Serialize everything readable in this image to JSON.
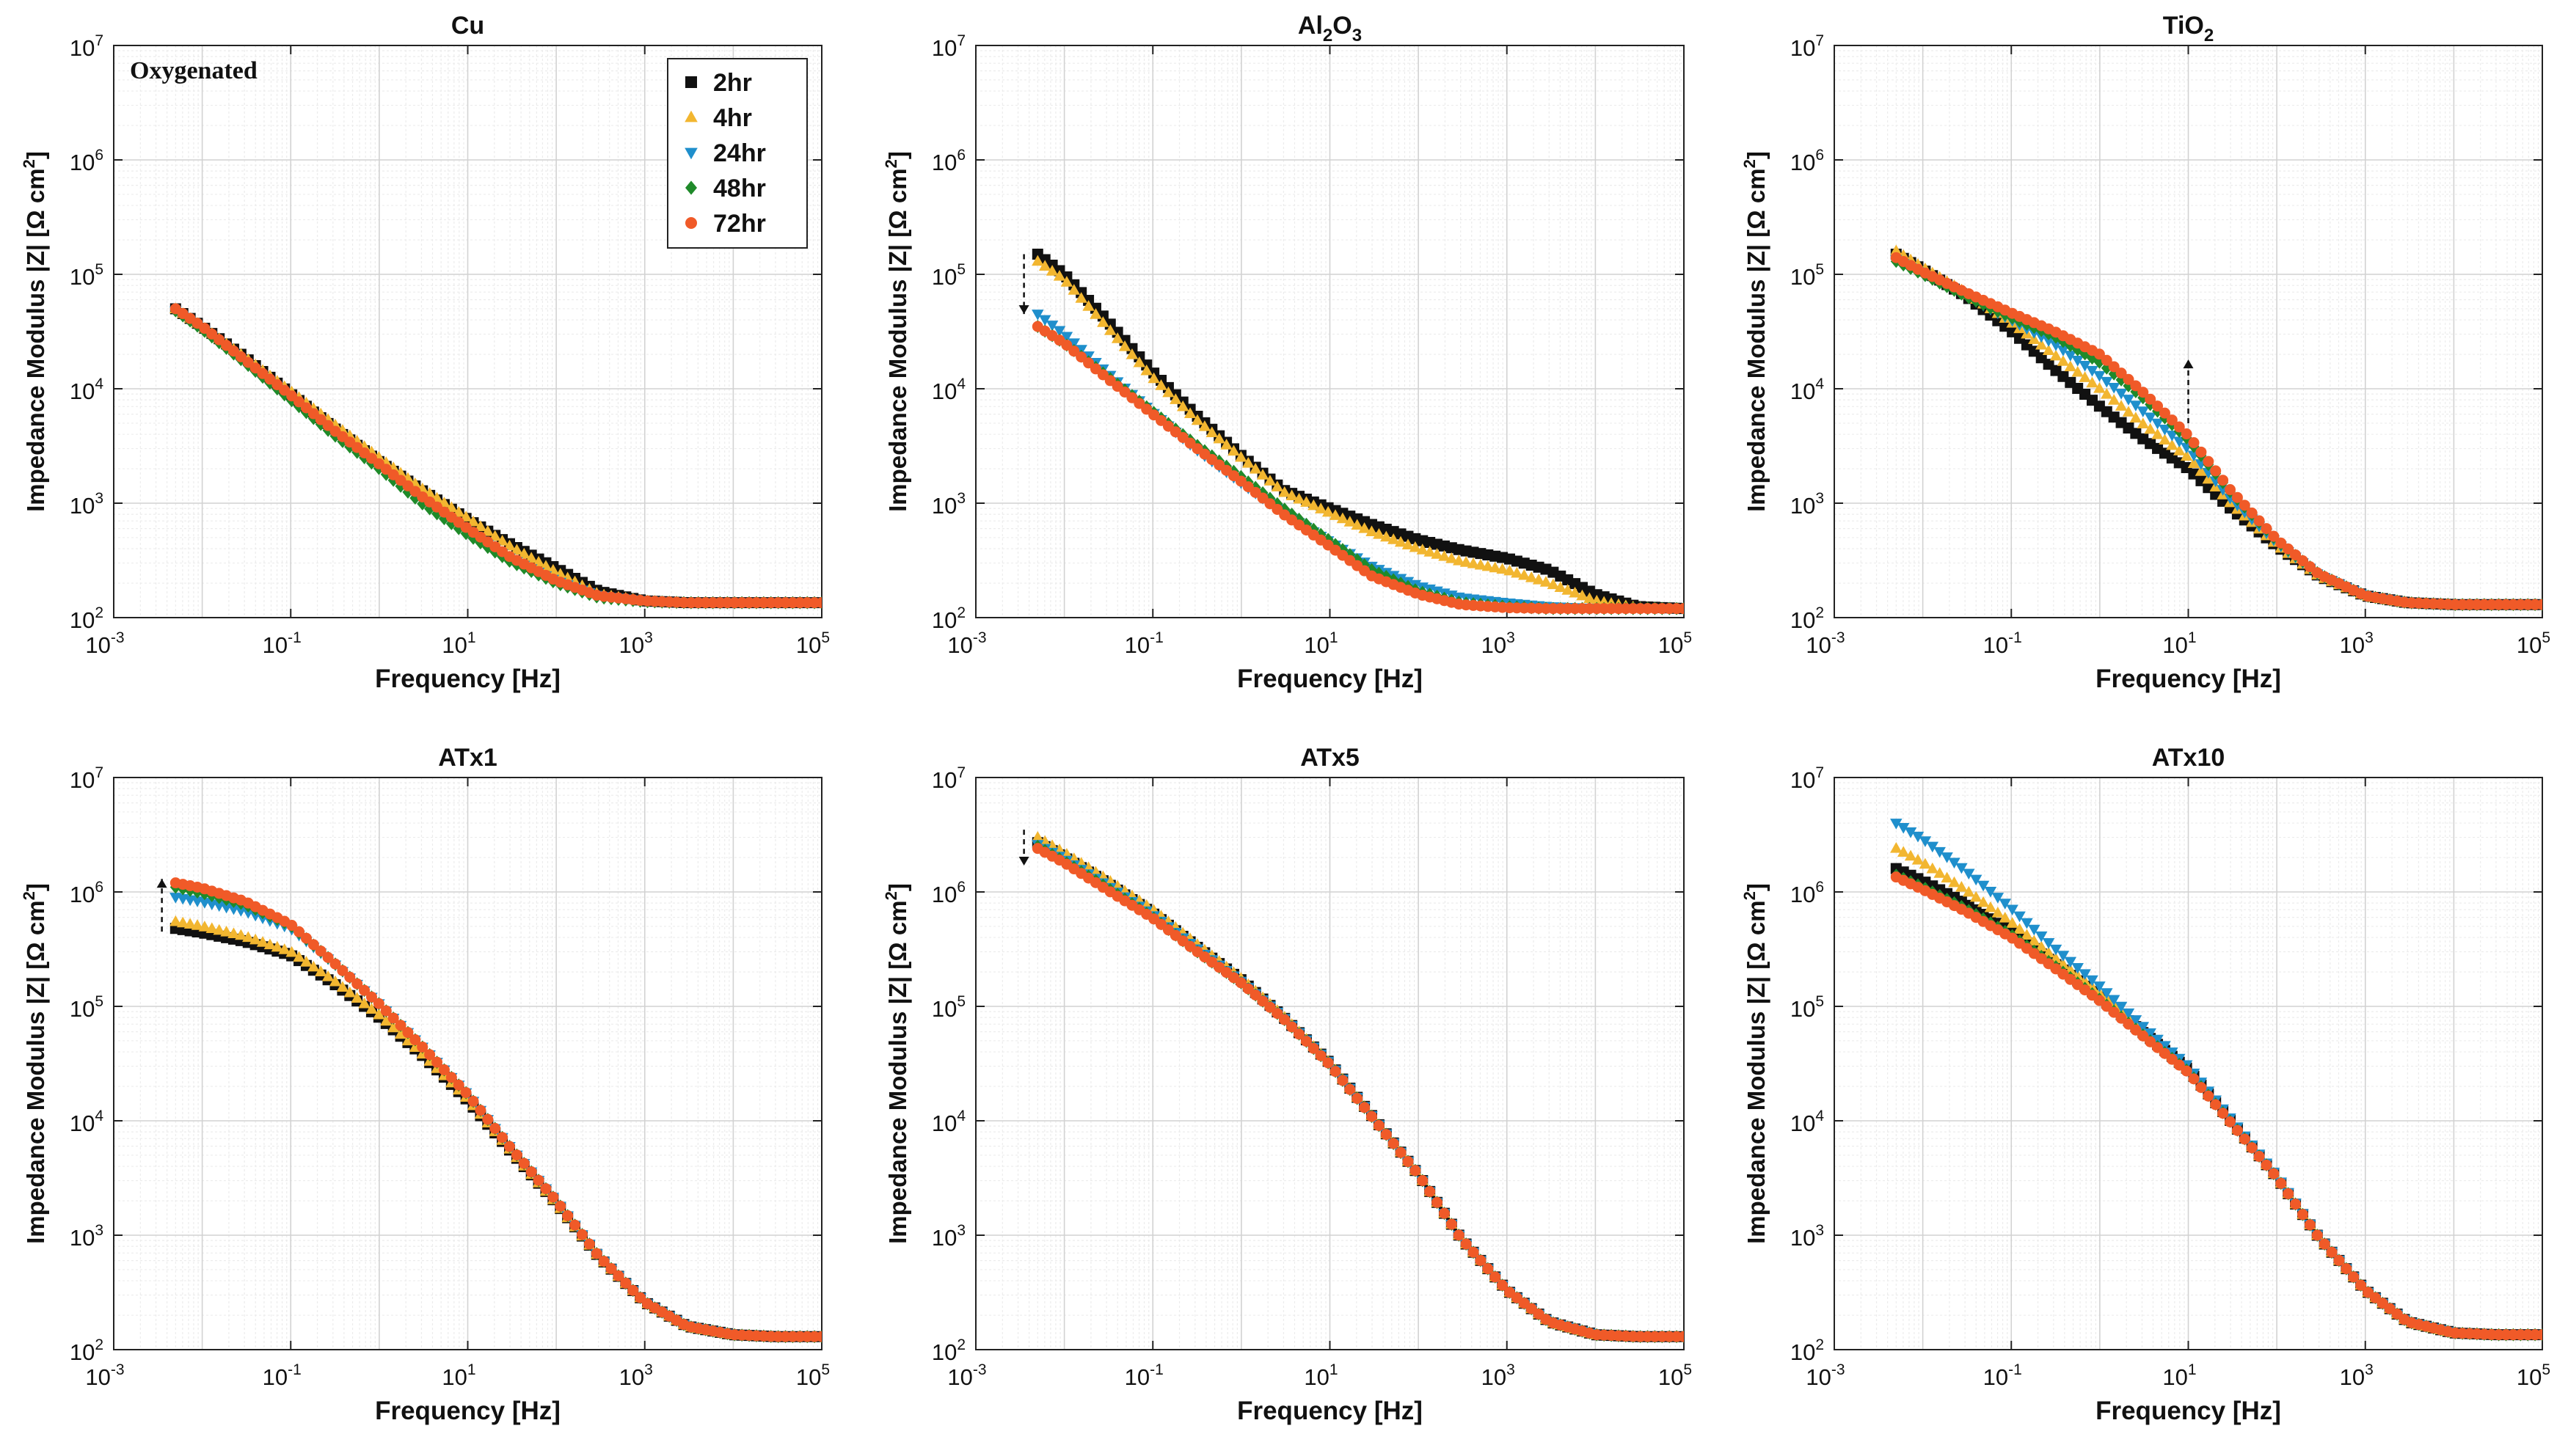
{
  "figure": {
    "x_axis_label": "Frequency [Hz]",
    "y_axis_label_prefix": "Impedance Modulus |Z| [Ω cm",
    "y_axis_label_sup": "2",
    "y_axis_label_suffix": "]",
    "condition_label": "Oxygenated"
  },
  "chart_data": {
    "type": "scatter",
    "x_scale": "log",
    "y_scale": "log",
    "xlim": [
      0.001,
      100000
    ],
    "ylim": [
      100,
      10000000
    ],
    "x_ticks": [
      {
        "base": "10",
        "exp": "-3",
        "value": 0.001
      },
      {
        "base": "10",
        "exp": "-1",
        "value": 0.1
      },
      {
        "base": "10",
        "exp": "1",
        "value": 10
      },
      {
        "base": "10",
        "exp": "3",
        "value": 1000
      },
      {
        "base": "10",
        "exp": "5",
        "value": 100000
      }
    ],
    "y_ticks": [
      {
        "base": "10",
        "exp": "2",
        "value": 100
      },
      {
        "base": "10",
        "exp": "3",
        "value": 1000
      },
      {
        "base": "10",
        "exp": "4",
        "value": 10000
      },
      {
        "base": "10",
        "exp": "5",
        "value": 100000
      },
      {
        "base": "10",
        "exp": "6",
        "value": 1000000
      },
      {
        "base": "10",
        "exp": "7",
        "value": 10000000
      }
    ],
    "legend": [
      {
        "label": "2hr",
        "color": "#111111",
        "marker": "square"
      },
      {
        "label": "4hr",
        "color": "#f2b630",
        "marker": "triangle-up"
      },
      {
        "label": "24hr",
        "color": "#1f8fcc",
        "marker": "triangle-down"
      },
      {
        "label": "48hr",
        "color": "#1f8a2a",
        "marker": "diamond"
      },
      {
        "label": "72hr",
        "color": "#f05a28",
        "marker": "circle"
      }
    ],
    "frequency_hz": [
      0.005,
      0.01,
      0.03,
      0.1,
      0.3,
      1,
      3,
      10,
      30,
      100,
      300,
      1000,
      3000,
      10000,
      30000,
      100000
    ],
    "panels": [
      {
        "title": "Cu",
        "title_sub": "",
        "title_suffix": "",
        "series": [
          {
            "name": "2hr",
            "z": [
              50000,
              35000,
              19000,
              9000,
              4600,
              2300,
              1300,
              720,
              440,
              270,
              170,
              140,
              135,
              135,
              135,
              135
            ]
          },
          {
            "name": "4hr",
            "z": [
              50000,
              35000,
              19000,
              9500,
              5000,
              2500,
              1350,
              740,
              420,
              250,
              160,
              140,
              135,
              135,
              135,
              135
            ]
          },
          {
            "name": "24hr",
            "z": [
              48000,
              33000,
              17000,
              8000,
              4000,
              2000,
              1050,
              560,
              330,
              210,
              155,
              140,
              135,
              135,
              135,
              135
            ]
          },
          {
            "name": "48hr",
            "z": [
              48000,
              33000,
              17000,
              8000,
              4000,
              2000,
              1000,
              530,
              310,
              200,
              150,
              138,
              135,
              135,
              135,
              135
            ]
          },
          {
            "name": "72hr",
            "z": [
              50000,
              35000,
              18000,
              8800,
              4400,
              2200,
              1150,
              600,
              340,
              210,
              155,
              140,
              135,
              135,
              135,
              135
            ]
          }
        ]
      },
      {
        "title": "Al",
        "title_sub": "2",
        "title_suffix": "O",
        "title_sub2": "3",
        "series": [
          {
            "name": "2hr",
            "z": [
              150000,
              100000,
              40000,
              14000,
              6000,
              2600,
              1300,
              900,
              650,
              480,
              390,
              330,
              260,
              160,
              125,
              120
            ]
          },
          {
            "name": "4hr",
            "z": [
              130000,
              90000,
              35000,
              12500,
              5500,
              2500,
              1250,
              820,
              560,
              400,
              310,
              260,
              200,
              140,
              122,
              120
            ]
          },
          {
            "name": "24hr",
            "z": [
              45000,
              30000,
              14000,
              6200,
              3000,
              1500,
              820,
              460,
              280,
              190,
              150,
              135,
              125,
              120,
              120,
              120
            ]
          },
          {
            "name": "48hr",
            "z": [
              35000,
              25000,
              13000,
              6300,
              3300,
              1700,
              900,
              470,
              260,
              170,
              135,
              125,
              120,
              120,
              120,
              120
            ]
          },
          {
            "name": "72hr",
            "z": [
              35000,
              25000,
              12500,
              6000,
              3100,
              1550,
              800,
              420,
              230,
              160,
              130,
              122,
              120,
              120,
              120,
              120
            ]
          }
        ]
      },
      {
        "title": "TiO",
        "title_sub": "2",
        "title_suffix": "",
        "series": [
          {
            "name": "2hr",
            "z": [
              150000,
              110000,
              65000,
              32000,
              15000,
              7000,
              3700,
              2000,
              900,
              420,
              230,
              155,
              135,
              130,
              130,
              130
            ]
          },
          {
            "name": "4hr",
            "z": [
              160000,
              115000,
              70000,
              38000,
              20000,
              10000,
              5000,
              2500,
              1000,
              430,
              230,
              155,
              135,
              130,
              130,
              130
            ]
          },
          {
            "name": "24hr",
            "z": [
              135000,
              100000,
              65000,
              40000,
              25000,
              13000,
              6500,
              3000,
              1100,
              450,
              235,
              155,
              135,
              130,
              130,
              130
            ]
          },
          {
            "name": "48hr",
            "z": [
              130000,
              100000,
              65000,
              42000,
              29000,
              17000,
              8500,
              3600,
              1250,
              470,
              240,
              155,
              135,
              130,
              130,
              130
            ]
          },
          {
            "name": "72hr",
            "z": [
              140000,
              105000,
              70000,
              46000,
              32000,
              20000,
              9500,
              3900,
              1300,
              480,
              240,
              155,
              135,
              130,
              130,
              130
            ]
          }
        ]
      },
      {
        "title": "ATx1",
        "title_sub": "",
        "title_suffix": "",
        "series": [
          {
            "name": "2hr",
            "z": [
              480000,
              440000,
              370000,
              280000,
              160000,
              80000,
              38000,
              15000,
              5500,
              1900,
              650,
              260,
              160,
              135,
              130,
              130
            ]
          },
          {
            "name": "4hr",
            "z": [
              550000,
              500000,
              410000,
              300000,
              170000,
              84000,
              39000,
              15500,
              5600,
              1900,
              650,
              260,
              160,
              135,
              130,
              130
            ]
          },
          {
            "name": "24hr",
            "z": [
              900000,
              820000,
              680000,
              480000,
              240000,
              105000,
              45000,
              17000,
              5900,
              2000,
              660,
              260,
              160,
              135,
              130,
              130
            ]
          },
          {
            "name": "48hr",
            "z": [
              1100000,
              980000,
              780000,
              510000,
              245000,
              105000,
              45000,
              17000,
              5900,
              2000,
              660,
              260,
              160,
              135,
              130,
              130
            ]
          },
          {
            "name": "72hr",
            "z": [
              1200000,
              1080000,
              830000,
              520000,
              245000,
              105000,
              45000,
              17000,
              5900,
              2000,
              660,
              260,
              160,
              135,
              130,
              130
            ]
          }
        ]
      },
      {
        "title": "ATx5",
        "title_sub": "",
        "title_suffix": "",
        "series": [
          {
            "name": "2hr",
            "z": [
              2700000,
              2000000,
              1200000,
              650000,
              340000,
              170000,
              80000,
              32000,
              11000,
              3400,
              950,
              330,
              175,
              135,
              130,
              130
            ]
          },
          {
            "name": "4hr",
            "z": [
              3000000,
              2200000,
              1300000,
              700000,
              360000,
              175000,
              82000,
              32000,
              11000,
              3400,
              950,
              330,
              175,
              135,
              130,
              130
            ]
          },
          {
            "name": "24hr",
            "z": [
              2600000,
              1950000,
              1150000,
              630000,
              330000,
              165000,
              80000,
              32000,
              11000,
              3400,
              950,
              330,
              175,
              135,
              130,
              130
            ]
          },
          {
            "name": "48hr",
            "z": [
              2500000,
              1850000,
              1100000,
              600000,
              310000,
              160000,
              78000,
              31000,
              10800,
              3400,
              950,
              330,
              175,
              135,
              130,
              130
            ]
          },
          {
            "name": "72hr",
            "z": [
              2400000,
              1800000,
              1050000,
              590000,
              310000,
              160000,
              78000,
              31000,
              10800,
              3400,
              950,
              330,
              175,
              135,
              130,
              130
            ]
          }
        ]
      },
      {
        "title": "ATx10",
        "title_sub": "",
        "title_suffix": "",
        "series": [
          {
            "name": "2hr",
            "z": [
              1600000,
              1250000,
              800000,
              450000,
              240000,
              120000,
              60000,
              28000,
              10000,
              3200,
              950,
              330,
              175,
              140,
              135,
              135
            ]
          },
          {
            "name": "4hr",
            "z": [
              2400000,
              1800000,
              1050000,
              540000,
              270000,
              130000,
              62000,
              28000,
              10000,
              3200,
              950,
              330,
              175,
              140,
              135,
              135
            ]
          },
          {
            "name": "24hr",
            "z": [
              4000000,
              2900000,
              1550000,
              720000,
              330000,
              150000,
              68000,
              30000,
              10500,
              3300,
              960,
              330,
              175,
              140,
              135,
              135
            ]
          },
          {
            "name": "48hr",
            "z": [
              1400000,
              1100000,
              720000,
              420000,
              230000,
              115000,
              57000,
              27000,
              9800,
              3200,
              950,
              330,
              175,
              140,
              135,
              135
            ]
          },
          {
            "name": "72hr",
            "z": [
              1350000,
              1050000,
              680000,
              400000,
              220000,
              112000,
              56000,
              26500,
              9700,
              3200,
              950,
              330,
              175,
              140,
              135,
              135
            ]
          }
        ]
      }
    ]
  }
}
